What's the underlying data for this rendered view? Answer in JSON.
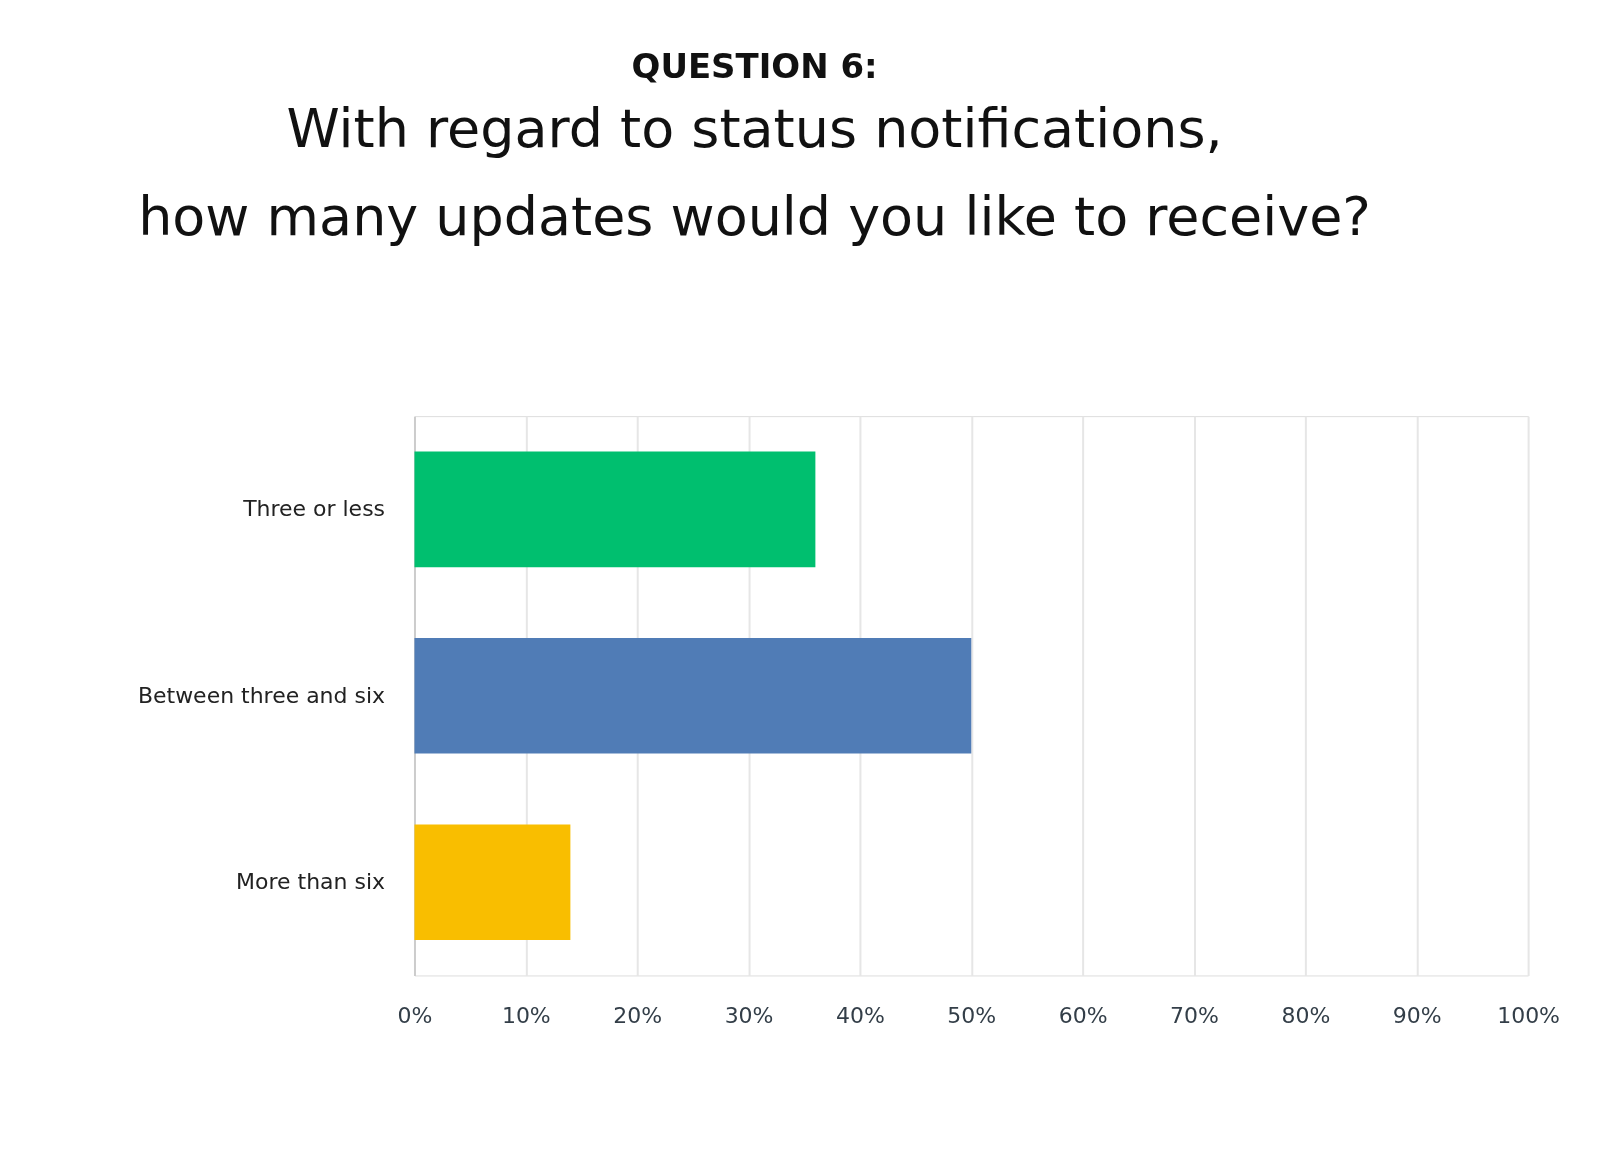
{
  "chart_data": {
    "type": "bar",
    "orientation": "horizontal",
    "title": "QUESTION 6:",
    "subtitle": "With regard to status notifications,\nhow many updates would you like to receive?",
    "categories": [
      "Three or less",
      "Between three and six",
      "More than six"
    ],
    "values": [
      36,
      50,
      14
    ],
    "colors": [
      "#00bf6f",
      "#507cb6",
      "#f9be00"
    ],
    "xlim": [
      0,
      100
    ],
    "xticks": [
      {
        "value": 0,
        "label": "0%"
      },
      {
        "value": 10,
        "label": "10%"
      },
      {
        "value": 20,
        "label": "20%"
      },
      {
        "value": 30,
        "label": "30%"
      },
      {
        "value": 40,
        "label": "40%"
      },
      {
        "value": 50,
        "label": "50%"
      },
      {
        "value": 60,
        "label": "60%"
      },
      {
        "value": 70,
        "label": "70%"
      },
      {
        "value": 80,
        "label": "80%"
      },
      {
        "value": 90,
        "label": "90%"
      },
      {
        "value": 100,
        "label": "100%"
      }
    ],
    "grid": "x"
  }
}
